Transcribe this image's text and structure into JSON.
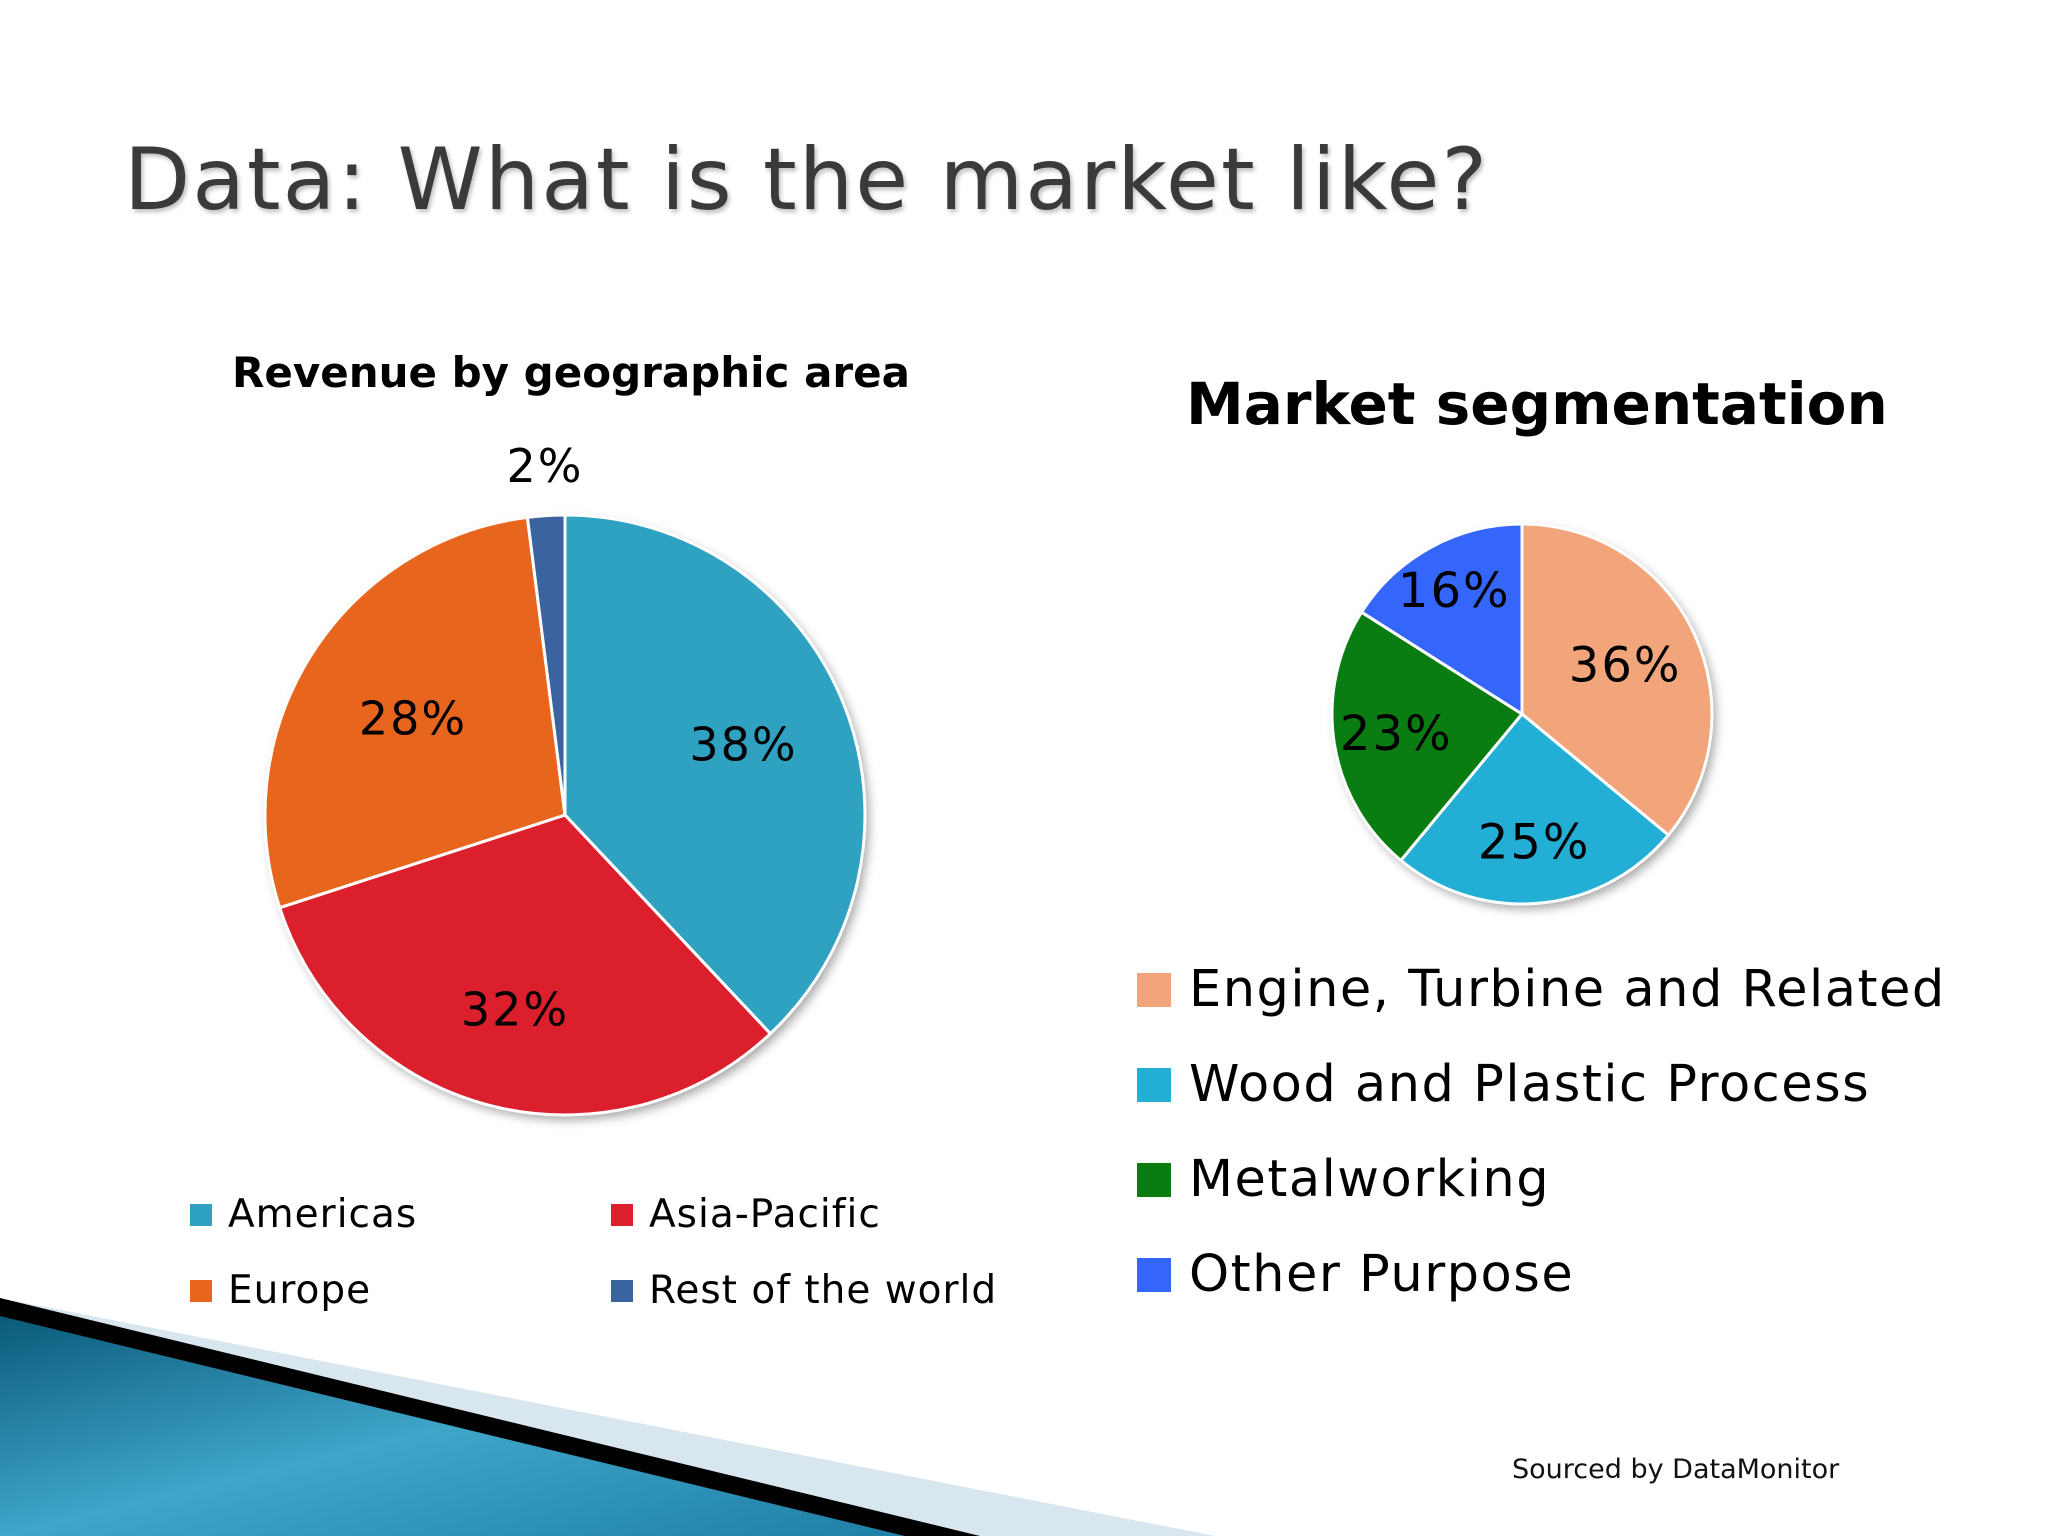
{
  "slide": {
    "title": "Data: What is the market like?",
    "source": "Sourced by DataMonitor"
  },
  "chart_data": [
    {
      "type": "pie",
      "title": "Revenue by geographic area",
      "slices": [
        {
          "label": "Americas",
          "value": 38,
          "display": "38%",
          "color": "#2fa2c2"
        },
        {
          "label": "Asia-Pacific",
          "value": 32,
          "display": "32%",
          "color": "#dc1f2c"
        },
        {
          "label": "Europe",
          "value": 28,
          "display": "28%",
          "color": "#e8651e"
        },
        {
          "label": "Rest of the world",
          "value": 2,
          "display": "2%",
          "color": "#3a63a0"
        }
      ],
      "legend": [
        "Americas",
        "Asia-Pacific",
        "Europe",
        "Rest of the world"
      ],
      "legend_position": "bottom"
    },
    {
      "type": "pie",
      "title": "Market segmentation",
      "slices": [
        {
          "label": "Engine, Turbine and Related",
          "value": 36,
          "display": "36%",
          "color": "#f2a57a"
        },
        {
          "label": "Wood and Plastic Process",
          "value": 25,
          "display": "25%",
          "color": "#23aed6"
        },
        {
          "label": "Metalworking",
          "value": 23,
          "display": "23%",
          "color": "#0a7d12"
        },
        {
          "label": "Other Purpose",
          "value": 16,
          "display": "16%",
          "color": "#3466fb"
        }
      ],
      "legend": [
        "Engine, Turbine and Related",
        "Wood and Plastic Process",
        "Metalworking",
        "Other Purpose"
      ],
      "legend_position": "bottom"
    }
  ]
}
